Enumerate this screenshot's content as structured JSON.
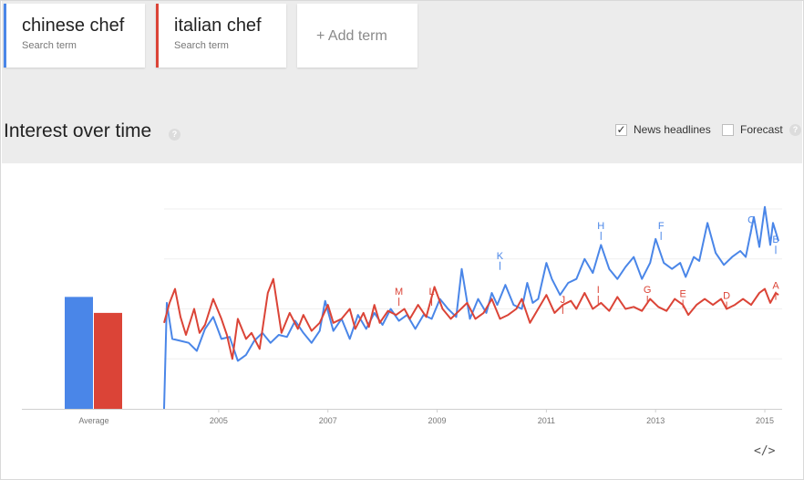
{
  "terms": [
    {
      "name": "chinese chef",
      "sub": "Search term",
      "color": "#4a86e8"
    },
    {
      "name": "italian chef",
      "sub": "Search term",
      "color": "#db4437"
    }
  ],
  "add_term_label": "+ Add term",
  "section": {
    "title": "Interest over time",
    "help_glyph": "?",
    "news_label": "News headlines",
    "news_checked": true,
    "news_check_glyph": "✓",
    "forecast_label": "Forecast",
    "forecast_checked": false
  },
  "embed_glyph": "</>",
  "chart_data": {
    "type": "line",
    "averages": {
      "label": "Average",
      "values": [
        56,
        48
      ],
      "ylim": [
        0,
        100
      ]
    },
    "x_ticks": [
      "2005",
      "2007",
      "2009",
      "2011",
      "2013",
      "2015"
    ],
    "x_tick_values": [
      2005,
      2007,
      2009,
      2011,
      2013,
      2015
    ],
    "xlim": [
      2004.0,
      2015.25
    ],
    "ylim": [
      0,
      100
    ],
    "series": [
      {
        "color": "#4a86e8",
        "points": [
          [
            2004.0,
            0
          ],
          [
            2004.05,
            53
          ],
          [
            2004.15,
            35
          ],
          [
            2004.3,
            34
          ],
          [
            2004.45,
            33
          ],
          [
            2004.6,
            29
          ],
          [
            2004.75,
            40
          ],
          [
            2004.9,
            46
          ],
          [
            2005.05,
            35
          ],
          [
            2005.2,
            36
          ],
          [
            2005.35,
            24
          ],
          [
            2005.5,
            27
          ],
          [
            2005.65,
            34
          ],
          [
            2005.8,
            38
          ],
          [
            2005.95,
            33
          ],
          [
            2006.1,
            37
          ],
          [
            2006.25,
            36
          ],
          [
            2006.4,
            44
          ],
          [
            2006.55,
            38
          ],
          [
            2006.7,
            33
          ],
          [
            2006.85,
            39
          ],
          [
            2006.95,
            54
          ],
          [
            2007.1,
            39
          ],
          [
            2007.25,
            45
          ],
          [
            2007.4,
            35
          ],
          [
            2007.55,
            47
          ],
          [
            2007.7,
            40
          ],
          [
            2007.85,
            48
          ],
          [
            2008.0,
            42
          ],
          [
            2008.15,
            50
          ],
          [
            2008.3,
            44
          ],
          [
            2008.45,
            47
          ],
          [
            2008.6,
            40
          ],
          [
            2008.75,
            47
          ],
          [
            2008.9,
            45
          ],
          [
            2009.05,
            55
          ],
          [
            2009.2,
            50
          ],
          [
            2009.35,
            46
          ],
          [
            2009.45,
            70
          ],
          [
            2009.6,
            45
          ],
          [
            2009.75,
            55
          ],
          [
            2009.9,
            48
          ],
          [
            2010.0,
            58
          ],
          [
            2010.1,
            52
          ],
          [
            2010.25,
            62
          ],
          [
            2010.4,
            52
          ],
          [
            2010.55,
            50
          ],
          [
            2010.65,
            63
          ],
          [
            2010.75,
            53
          ],
          [
            2010.85,
            55
          ],
          [
            2011.0,
            73
          ],
          [
            2011.1,
            65
          ],
          [
            2011.25,
            57
          ],
          [
            2011.4,
            63
          ],
          [
            2011.55,
            65
          ],
          [
            2011.7,
            75
          ],
          [
            2011.85,
            68
          ],
          [
            2012.0,
            82
          ],
          [
            2012.15,
            70
          ],
          [
            2012.3,
            65
          ],
          [
            2012.45,
            71
          ],
          [
            2012.6,
            76
          ],
          [
            2012.75,
            65
          ],
          [
            2012.9,
            73
          ],
          [
            2013.0,
            85
          ],
          [
            2013.15,
            73
          ],
          [
            2013.3,
            70
          ],
          [
            2013.45,
            73
          ],
          [
            2013.55,
            66
          ],
          [
            2013.7,
            76
          ],
          [
            2013.8,
            74
          ],
          [
            2013.95,
            93
          ],
          [
            2014.1,
            78
          ],
          [
            2014.25,
            72
          ],
          [
            2014.4,
            76
          ],
          [
            2014.55,
            79
          ],
          [
            2014.65,
            76
          ],
          [
            2014.8,
            96
          ],
          [
            2014.9,
            81
          ],
          [
            2015.0,
            101
          ],
          [
            2015.1,
            82
          ],
          [
            2015.15,
            93
          ],
          [
            2015.25,
            84
          ]
        ]
      },
      {
        "color": "#db4437",
        "points": [
          [
            2004.0,
            43
          ],
          [
            2004.1,
            53
          ],
          [
            2004.2,
            60
          ],
          [
            2004.3,
            46
          ],
          [
            2004.4,
            37
          ],
          [
            2004.55,
            50
          ],
          [
            2004.65,
            38
          ],
          [
            2004.75,
            42
          ],
          [
            2004.9,
            55
          ],
          [
            2005.05,
            45
          ],
          [
            2005.15,
            37
          ],
          [
            2005.25,
            25
          ],
          [
            2005.35,
            45
          ],
          [
            2005.5,
            35
          ],
          [
            2005.6,
            38
          ],
          [
            2005.75,
            30
          ],
          [
            2005.9,
            58
          ],
          [
            2006.0,
            65
          ],
          [
            2006.15,
            38
          ],
          [
            2006.3,
            48
          ],
          [
            2006.45,
            40
          ],
          [
            2006.55,
            47
          ],
          [
            2006.7,
            39
          ],
          [
            2006.85,
            43
          ],
          [
            2007.0,
            52
          ],
          [
            2007.1,
            43
          ],
          [
            2007.25,
            45
          ],
          [
            2007.4,
            50
          ],
          [
            2007.5,
            40
          ],
          [
            2007.65,
            48
          ],
          [
            2007.75,
            41
          ],
          [
            2007.85,
            52
          ],
          [
            2007.95,
            43
          ],
          [
            2008.1,
            49
          ],
          [
            2008.25,
            47
          ],
          [
            2008.4,
            50
          ],
          [
            2008.5,
            45
          ],
          [
            2008.65,
            52
          ],
          [
            2008.8,
            46
          ],
          [
            2008.95,
            61
          ],
          [
            2009.1,
            50
          ],
          [
            2009.25,
            45
          ],
          [
            2009.4,
            49
          ],
          [
            2009.55,
            53
          ],
          [
            2009.7,
            45
          ],
          [
            2009.85,
            48
          ],
          [
            2010.0,
            55
          ],
          [
            2010.15,
            45
          ],
          [
            2010.3,
            47
          ],
          [
            2010.45,
            50
          ],
          [
            2010.55,
            55
          ],
          [
            2010.7,
            43
          ],
          [
            2010.85,
            50
          ],
          [
            2011.0,
            57
          ],
          [
            2011.15,
            48
          ],
          [
            2011.3,
            52
          ],
          [
            2011.45,
            54
          ],
          [
            2011.55,
            50
          ],
          [
            2011.7,
            58
          ],
          [
            2011.85,
            50
          ],
          [
            2012.0,
            53
          ],
          [
            2012.15,
            49
          ],
          [
            2012.3,
            56
          ],
          [
            2012.45,
            50
          ],
          [
            2012.6,
            51
          ],
          [
            2012.75,
            49
          ],
          [
            2012.9,
            55
          ],
          [
            2013.05,
            51
          ],
          [
            2013.2,
            49
          ],
          [
            2013.35,
            55
          ],
          [
            2013.5,
            52
          ],
          [
            2013.6,
            47
          ],
          [
            2013.75,
            52
          ],
          [
            2013.9,
            55
          ],
          [
            2014.05,
            52
          ],
          [
            2014.2,
            55
          ],
          [
            2014.3,
            50
          ],
          [
            2014.45,
            52
          ],
          [
            2014.6,
            55
          ],
          [
            2014.75,
            52
          ],
          [
            2014.9,
            58
          ],
          [
            2015.0,
            60
          ],
          [
            2015.1,
            53
          ],
          [
            2015.2,
            58
          ],
          [
            2015.25,
            57
          ]
        ]
      }
    ],
    "annotations": [
      {
        "label": "M",
        "x": 2008.3,
        "y": 57,
        "series": 1
      },
      {
        "label": "L",
        "x": 2008.9,
        "y": 57,
        "series": 1
      },
      {
        "label": "K",
        "x": 2010.15,
        "y": 75,
        "series": 0
      },
      {
        "label": "J",
        "x": 2011.3,
        "y": 53,
        "series": 1
      },
      {
        "label": "I",
        "x": 2011.95,
        "y": 58,
        "series": 1
      },
      {
        "label": "H",
        "x": 2012.0,
        "y": 90,
        "series": 0
      },
      {
        "label": "G",
        "x": 2012.85,
        "y": 58,
        "series": 1
      },
      {
        "label": "F",
        "x": 2013.1,
        "y": 90,
        "series": 0
      },
      {
        "label": "E",
        "x": 2013.5,
        "y": 56,
        "series": 1
      },
      {
        "label": "D",
        "x": 2014.3,
        "y": 55,
        "series": 1
      },
      {
        "label": "C",
        "x": 2014.75,
        "y": 93,
        "series": 0
      },
      {
        "label": "B",
        "x": 2015.2,
        "y": 83,
        "series": 0
      },
      {
        "label": "A",
        "x": 2015.2,
        "y": 60,
        "series": 1
      }
    ],
    "grid": true
  }
}
